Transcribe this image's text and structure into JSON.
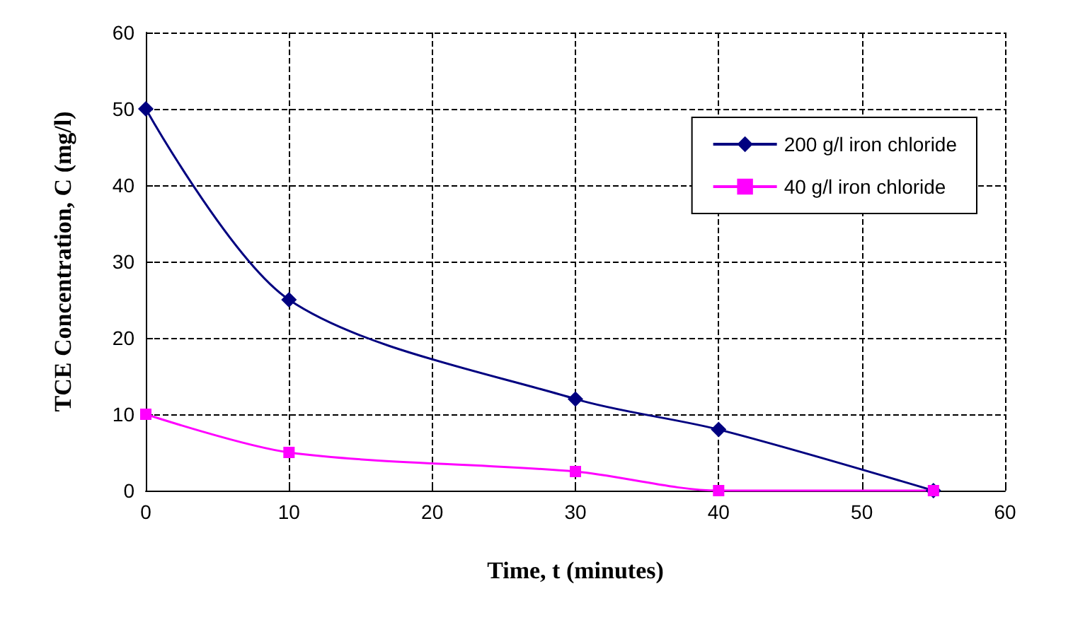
{
  "chart_data": {
    "type": "line",
    "xlabel": "Time, t (minutes)",
    "ylabel": "TCE Concentration, C (mg/l)",
    "x": [
      0,
      10,
      30,
      40,
      55
    ],
    "series": [
      {
        "name": "200 g/l iron chloride",
        "color": "#000080",
        "marker": "diamond",
        "values": [
          50,
          25,
          12,
          8,
          0
        ]
      },
      {
        "name": "40 g/l iron chloride",
        "color": "#ff00ff",
        "marker": "square",
        "values": [
          10,
          5,
          2.5,
          0,
          0
        ]
      }
    ],
    "xlim": [
      0,
      60
    ],
    "xticks": [
      0,
      10,
      20,
      30,
      40,
      50,
      60
    ],
    "ylim": [
      0,
      60
    ],
    "yticks": [
      0,
      10,
      20,
      30,
      40,
      50,
      60
    ],
    "grid": true,
    "legend": "top right"
  }
}
